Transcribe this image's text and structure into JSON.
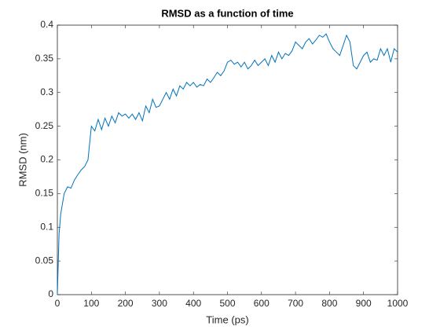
{
  "chart_data": {
    "type": "line",
    "title": "RMSD as a function of time",
    "x_label": "Time (ps)",
    "y_label": "RMSD (nm)",
    "x": [
      0,
      5,
      10,
      20,
      30,
      40,
      50,
      60,
      70,
      80,
      90,
      100,
      110,
      120,
      130,
      140,
      150,
      160,
      170,
      180,
      190,
      200,
      210,
      220,
      230,
      240,
      250,
      260,
      270,
      280,
      290,
      300,
      310,
      320,
      330,
      340,
      350,
      360,
      370,
      380,
      390,
      400,
      410,
      420,
      430,
      440,
      450,
      460,
      470,
      480,
      490,
      500,
      510,
      520,
      530,
      540,
      550,
      560,
      570,
      580,
      590,
      600,
      610,
      620,
      630,
      640,
      650,
      660,
      670,
      680,
      690,
      700,
      710,
      720,
      730,
      740,
      750,
      760,
      770,
      780,
      790,
      800,
      810,
      820,
      830,
      840,
      850,
      860,
      870,
      880,
      890,
      900,
      910,
      920,
      930,
      940,
      950,
      960,
      970,
      980,
      990,
      1000
    ],
    "series": [
      {
        "name": "RMSD",
        "color": "#0072bd",
        "values": [
          0.0,
          0.09,
          0.12,
          0.15,
          0.16,
          0.158,
          0.17,
          0.178,
          0.185,
          0.19,
          0.2,
          0.25,
          0.243,
          0.26,
          0.245,
          0.262,
          0.25,
          0.265,
          0.255,
          0.27,
          0.265,
          0.268,
          0.262,
          0.268,
          0.26,
          0.27,
          0.258,
          0.28,
          0.27,
          0.29,
          0.278,
          0.28,
          0.29,
          0.3,
          0.29,
          0.305,
          0.295,
          0.31,
          0.305,
          0.315,
          0.31,
          0.315,
          0.308,
          0.312,
          0.31,
          0.32,
          0.315,
          0.322,
          0.33,
          0.325,
          0.332,
          0.345,
          0.348,
          0.342,
          0.345,
          0.338,
          0.345,
          0.335,
          0.34,
          0.348,
          0.34,
          0.345,
          0.35,
          0.34,
          0.355,
          0.345,
          0.36,
          0.35,
          0.358,
          0.355,
          0.362,
          0.375,
          0.37,
          0.365,
          0.375,
          0.38,
          0.372,
          0.378,
          0.385,
          0.382,
          0.387,
          0.375,
          0.365,
          0.36,
          0.355,
          0.37,
          0.385,
          0.375,
          0.34,
          0.335,
          0.345,
          0.355,
          0.36,
          0.345,
          0.35,
          0.348,
          0.365,
          0.355,
          0.365,
          0.345,
          0.365,
          0.36
        ]
      }
    ],
    "xlim": [
      0,
      1000
    ],
    "xticks": [
      0,
      100,
      200,
      300,
      400,
      500,
      600,
      700,
      800,
      900,
      1000
    ],
    "ylim": [
      0,
      0.4
    ],
    "yticks": [
      0,
      0.05,
      0.1,
      0.15,
      0.2,
      0.25,
      0.3,
      0.35,
      0.4
    ]
  }
}
